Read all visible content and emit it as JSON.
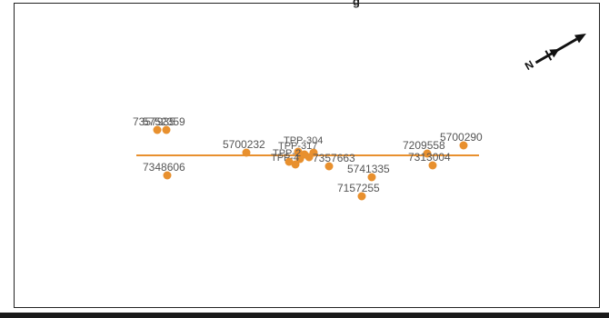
{
  "title": "g",
  "colors": {
    "feature": "#e8902e",
    "label": "#555555",
    "frame": "#222222"
  },
  "north_arrow": {
    "label": "N",
    "icon": "north-arrow-icon"
  },
  "points": [
    {
      "id": "p1",
      "label": "7357935"
    },
    {
      "id": "p2",
      "label": "5752359"
    },
    {
      "id": "p3",
      "label": "7348606"
    },
    {
      "id": "p4",
      "label": "5700232"
    },
    {
      "id": "p5",
      "label": "TPP-304"
    },
    {
      "id": "p6",
      "label": "TPP-317"
    },
    {
      "id": "p7",
      "label": "TPP-2"
    },
    {
      "id": "p8",
      "label": "TPP-4"
    },
    {
      "id": "p9",
      "label": "7357663"
    },
    {
      "id": "p10",
      "label": "5741335"
    },
    {
      "id": "p11",
      "label": "7157255"
    },
    {
      "id": "p12",
      "label": "7209558"
    },
    {
      "id": "p13",
      "label": "7313004"
    },
    {
      "id": "p14",
      "label": "5700290"
    }
  ]
}
